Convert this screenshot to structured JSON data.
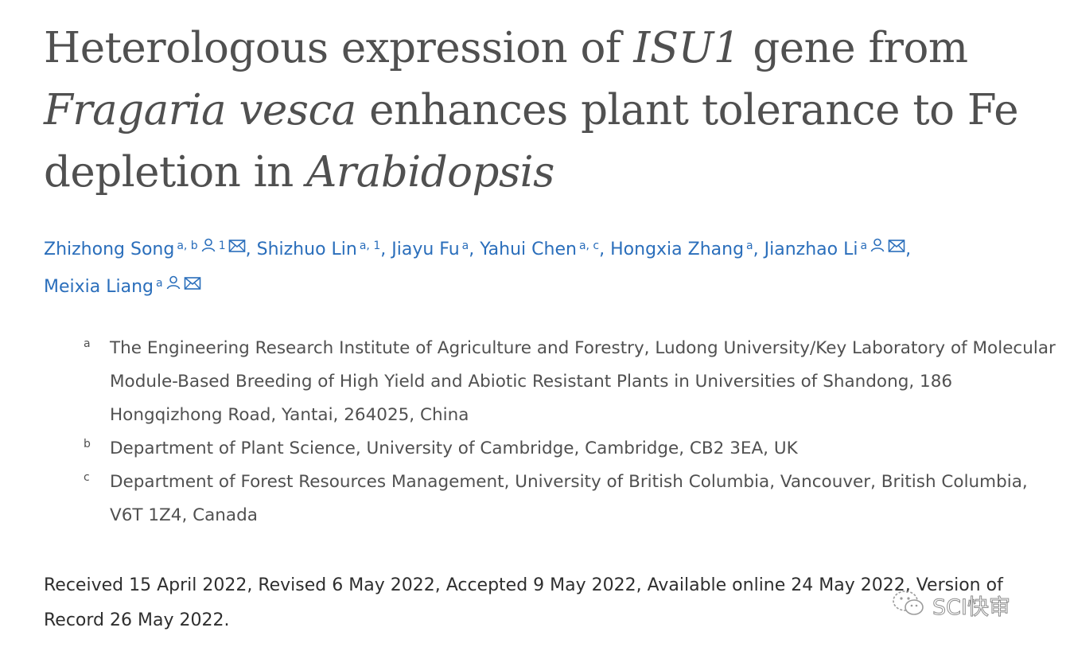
{
  "article": {
    "title_parts": {
      "p1": "Heterologous expression of ",
      "p2": "ISU1",
      "p3": " gene from ",
      "p4": "Fragaria vesca",
      "p5": " enhances plant tolerance to Fe depletion in ",
      "p6": "Arabidopsis"
    },
    "authors": [
      {
        "name": "Zhizhong Song",
        "sup": "a, b",
        "icons": [
          "person-icon",
          "note-1",
          "email-icon"
        ],
        "note": "1",
        "sep": ","
      },
      {
        "name": "Shizhuo Lin",
        "sup": "a, 1",
        "icons": [],
        "sep": ","
      },
      {
        "name": "Jiayu Fu",
        "sup": "a",
        "icons": [],
        "sep": ","
      },
      {
        "name": "Yahui Chen",
        "sup": "a, c",
        "icons": [],
        "sep": ","
      },
      {
        "name": "Hongxia Zhang",
        "sup": "a",
        "icons": [],
        "sep": ","
      },
      {
        "name": "Jianzhao Li",
        "sup": "a",
        "icons": [
          "person-icon",
          "email-icon"
        ],
        "sep": ","
      },
      {
        "name": "Meixia Liang",
        "sup": "a",
        "icons": [
          "person-icon",
          "email-icon"
        ],
        "sep": ""
      }
    ],
    "affiliations": [
      {
        "letter": "a",
        "text": "The Engineering Research Institute of Agriculture and Forestry, Ludong University/Key Laboratory of Molecular Module-Based Breeding of High Yield and Abiotic Resistant Plants in Universities of Shandong, 186 Hongqizhong Road, Yantai, 264025, China"
      },
      {
        "letter": "b",
        "text": "Department of Plant Science, University of Cambridge, Cambridge, CB2 3EA, UK"
      },
      {
        "letter": "c",
        "text": "Department of Forest Resources Management, University of British Columbia, Vancouver, British Columbia, V6T 1Z4, Canada"
      }
    ],
    "dates": "Received 15 April 2022, Revised 6 May 2022, Accepted 9 May 2022, Available online 24 May 2022, Version of Record 26 May 2022."
  },
  "watermark": {
    "text": "SCI快审",
    "icon": "wechat-icon"
  },
  "colors": {
    "link": "#2a6ebb",
    "title": "#505050",
    "text": "#2e2e2e"
  }
}
